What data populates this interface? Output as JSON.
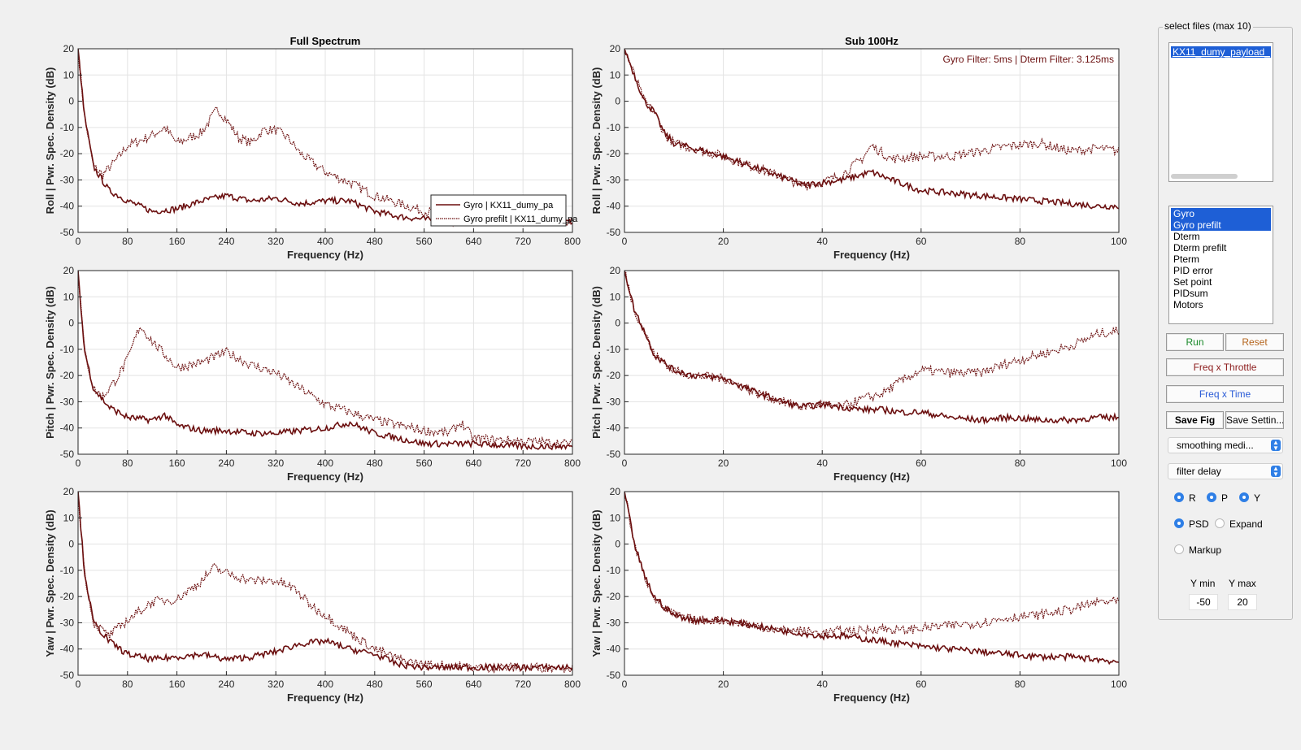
{
  "plots": [
    {
      "row": "Roll",
      "col": "full",
      "title": "Full Spectrum",
      "xlabel": "Frequency (Hz)",
      "ylabel": "Roll  |  Pwr. Spec. Density (dB)",
      "xlim": [
        0,
        800
      ],
      "xticks": [
        0,
        80,
        160,
        240,
        320,
        400,
        480,
        560,
        640,
        720,
        800
      ],
      "ylim": [
        -50,
        20
      ],
      "yticks": [
        20,
        10,
        0,
        -10,
        -20,
        -30,
        -40,
        -50
      ],
      "legend": [
        "Gyro | KX11_dumy_pa",
        "Gyro prefilt | KX11_dumy_pa"
      ]
    },
    {
      "row": "Roll",
      "col": "sub",
      "title": "Sub 100Hz",
      "xlabel": "Frequency (Hz)",
      "ylabel": "Roll  |  Pwr. Spec. Density (dB)",
      "xlim": [
        0,
        100
      ],
      "xticks": [
        0,
        20,
        40,
        60,
        80,
        100
      ],
      "ylim": [
        -50,
        20
      ],
      "yticks": [
        20,
        10,
        0,
        -10,
        -20,
        -30,
        -40,
        -50
      ],
      "annotation": "Gyro Filter: 5ms | Dterm Filter: 3.125ms"
    },
    {
      "row": "Pitch",
      "col": "full",
      "title": "",
      "xlabel": "Frequency (Hz)",
      "ylabel": "Pitch  |  Pwr. Spec. Density (dB)",
      "xlim": [
        0,
        800
      ],
      "xticks": [
        0,
        80,
        160,
        240,
        320,
        400,
        480,
        560,
        640,
        720,
        800
      ],
      "ylim": [
        -50,
        20
      ],
      "yticks": [
        20,
        10,
        0,
        -10,
        -20,
        -30,
        -40,
        -50
      ]
    },
    {
      "row": "Pitch",
      "col": "sub",
      "title": "",
      "xlabel": "Frequency (Hz)",
      "ylabel": "Pitch  |  Pwr. Spec. Density (dB)",
      "xlim": [
        0,
        100
      ],
      "xticks": [
        0,
        20,
        40,
        60,
        80,
        100
      ],
      "ylim": [
        -50,
        20
      ],
      "yticks": [
        20,
        10,
        0,
        -10,
        -20,
        -30,
        -40,
        -50
      ]
    },
    {
      "row": "Yaw",
      "col": "full",
      "title": "",
      "xlabel": "Frequency (Hz)",
      "ylabel": "Yaw  |  Pwr. Spec. Density (dB)",
      "xlim": [
        0,
        800
      ],
      "xticks": [
        0,
        80,
        160,
        240,
        320,
        400,
        480,
        560,
        640,
        720,
        800
      ],
      "ylim": [
        -50,
        20
      ],
      "yticks": [
        20,
        10,
        0,
        -10,
        -20,
        -30,
        -40,
        -50
      ]
    },
    {
      "row": "Yaw",
      "col": "sub",
      "title": "",
      "xlabel": "Frequency (Hz)",
      "ylabel": "Yaw  |  Pwr. Spec. Density (dB)",
      "xlim": [
        0,
        100
      ],
      "xticks": [
        0,
        20,
        40,
        60,
        80,
        100
      ],
      "ylim": [
        -50,
        20
      ],
      "yticks": [
        20,
        10,
        0,
        -10,
        -20,
        -30,
        -40,
        -50
      ]
    }
  ],
  "chart_data": [
    {
      "type": "line",
      "panel": "Roll Full Spectrum",
      "xlim": [
        0,
        800
      ],
      "ylim": [
        -50,
        20
      ],
      "grid": true,
      "series": [
        {
          "name": "Gyro | KX11_dumy_pa",
          "style": "solid",
          "x": [
            0,
            10,
            25,
            50,
            80,
            120,
            160,
            200,
            240,
            280,
            320,
            360,
            400,
            440,
            480,
            520,
            560,
            600,
            640,
            720,
            800
          ],
          "y": [
            20,
            -5,
            -25,
            -34,
            -38,
            -42,
            -41,
            -38,
            -36,
            -38,
            -37,
            -39,
            -38,
            -38,
            -42,
            -44,
            -45,
            -46,
            -46,
            -46,
            -46
          ]
        },
        {
          "name": "Gyro prefilt | KX11_dumy_pa",
          "style": "dotted",
          "x": [
            0,
            10,
            25,
            40,
            60,
            80,
            120,
            140,
            160,
            200,
            225,
            240,
            260,
            280,
            300,
            320,
            340,
            360,
            400,
            440,
            480,
            520,
            560,
            600,
            640,
            720,
            800
          ],
          "y": [
            20,
            -5,
            -25,
            -28,
            -23,
            -17,
            -13,
            -10,
            -16,
            -12,
            -3,
            -7,
            -14,
            -16,
            -11,
            -11,
            -14,
            -20,
            -27,
            -31,
            -36,
            -39,
            -42,
            -43,
            -45,
            -45,
            -46
          ]
        }
      ]
    },
    {
      "type": "line",
      "panel": "Roll Sub 100Hz",
      "xlim": [
        0,
        100
      ],
      "ylim": [
        -50,
        20
      ],
      "grid": true,
      "series": [
        {
          "name": "Gyro | KX11_dumy_pa",
          "style": "solid",
          "x": [
            0,
            2,
            4,
            6,
            8,
            10,
            14,
            20,
            26,
            32,
            36,
            40,
            44,
            48,
            50,
            54,
            60,
            66,
            72,
            78,
            84,
            90,
            96,
            100
          ],
          "y": [
            20,
            10,
            0,
            -4,
            -12,
            -16,
            -18,
            -21,
            -25,
            -29,
            -32,
            -31,
            -30,
            -28,
            -27,
            -30,
            -34,
            -35,
            -36,
            -37,
            -38,
            -39,
            -40,
            -40
          ]
        },
        {
          "name": "Gyro prefilt | KX11_dumy_pa",
          "style": "dotted",
          "x": [
            0,
            2,
            4,
            6,
            8,
            10,
            14,
            20,
            26,
            32,
            36,
            40,
            44,
            48,
            50,
            54,
            60,
            66,
            72,
            78,
            84,
            90,
            96,
            100
          ],
          "y": [
            20,
            10,
            0,
            -4,
            -12,
            -16,
            -18,
            -21,
            -25,
            -29,
            -32,
            -31,
            -28,
            -22,
            -17,
            -22,
            -21,
            -21,
            -19,
            -17,
            -16,
            -19,
            -18,
            -19
          ]
        }
      ]
    },
    {
      "type": "line",
      "panel": "Pitch Full Spectrum",
      "xlim": [
        0,
        800
      ],
      "ylim": [
        -50,
        20
      ],
      "grid": true,
      "series": [
        {
          "name": "Gyro | KX11_dumy_pa",
          "style": "solid",
          "x": [
            0,
            10,
            25,
            50,
            80,
            120,
            140,
            160,
            200,
            240,
            280,
            320,
            360,
            400,
            440,
            480,
            520,
            560,
            600,
            640,
            720,
            800
          ],
          "y": [
            20,
            -10,
            -25,
            -32,
            -36,
            -37,
            -35,
            -39,
            -41,
            -41,
            -42,
            -42,
            -41,
            -40,
            -38,
            -42,
            -44,
            -46,
            -46,
            -46,
            -47,
            -47
          ]
        },
        {
          "name": "Gyro prefilt | KX11_dumy_pa",
          "style": "dotted",
          "x": [
            0,
            10,
            25,
            40,
            60,
            80,
            100,
            120,
            140,
            160,
            200,
            240,
            280,
            320,
            360,
            400,
            440,
            480,
            520,
            560,
            600,
            620,
            640,
            720,
            800
          ],
          "y": [
            20,
            -10,
            -25,
            -28,
            -22,
            -14,
            -1,
            -7,
            -12,
            -17,
            -15,
            -11,
            -16,
            -19,
            -25,
            -31,
            -34,
            -37,
            -39,
            -41,
            -42,
            -38,
            -44,
            -45,
            -46
          ]
        }
      ]
    },
    {
      "type": "line",
      "panel": "Pitch Sub 100Hz",
      "xlim": [
        0,
        100
      ],
      "ylim": [
        -50,
        20
      ],
      "grid": true,
      "series": [
        {
          "name": "Gyro | KX11_dumy_pa",
          "style": "solid",
          "x": [
            0,
            2,
            4,
            6,
            8,
            10,
            14,
            20,
            26,
            32,
            36,
            40,
            44,
            48,
            52,
            56,
            60,
            66,
            72,
            78,
            84,
            90,
            96,
            100
          ],
          "y": [
            20,
            5,
            -3,
            -12,
            -15,
            -18,
            -20,
            -21,
            -26,
            -30,
            -32,
            -31,
            -32,
            -33,
            -33,
            -34,
            -34,
            -36,
            -37,
            -36,
            -37,
            -37,
            -36,
            -36
          ]
        },
        {
          "name": "Gyro prefilt | KX11_dumy_pa",
          "style": "dotted",
          "x": [
            0,
            2,
            4,
            6,
            8,
            10,
            14,
            20,
            26,
            32,
            36,
            40,
            44,
            48,
            52,
            56,
            60,
            66,
            72,
            78,
            84,
            90,
            96,
            100
          ],
          "y": [
            20,
            5,
            -3,
            -12,
            -15,
            -18,
            -20,
            -21,
            -26,
            -30,
            -32,
            -31,
            -32,
            -29,
            -27,
            -22,
            -18,
            -19,
            -19,
            -15,
            -12,
            -9,
            -4,
            -3
          ]
        }
      ]
    },
    {
      "type": "line",
      "panel": "Yaw Full Spectrum",
      "xlim": [
        0,
        800
      ],
      "ylim": [
        -50,
        20
      ],
      "grid": true,
      "series": [
        {
          "name": "Gyro | KX11_dumy_pa",
          "style": "solid",
          "x": [
            0,
            10,
            25,
            50,
            80,
            120,
            160,
            200,
            240,
            280,
            320,
            360,
            400,
            440,
            480,
            520,
            560,
            600,
            640,
            720,
            800
          ],
          "y": [
            20,
            -10,
            -30,
            -37,
            -42,
            -44,
            -43,
            -42,
            -44,
            -43,
            -41,
            -38,
            -37,
            -40,
            -42,
            -46,
            -47,
            -47,
            -47,
            -47,
            -47
          ]
        },
        {
          "name": "Gyro prefilt | KX11_dumy_pa",
          "style": "dotted",
          "x": [
            0,
            10,
            25,
            50,
            80,
            120,
            160,
            200,
            220,
            240,
            280,
            320,
            350,
            380,
            400,
            440,
            480,
            520,
            560,
            600,
            640,
            720,
            800
          ],
          "y": [
            20,
            -10,
            -30,
            -35,
            -29,
            -22,
            -21,
            -14,
            -9,
            -11,
            -14,
            -14,
            -17,
            -24,
            -27,
            -34,
            -40,
            -44,
            -46,
            -46,
            -47,
            -47,
            -47
          ]
        }
      ]
    },
    {
      "type": "line",
      "panel": "Yaw Sub 100Hz",
      "xlim": [
        0,
        100
      ],
      "ylim": [
        -50,
        20
      ],
      "grid": true,
      "series": [
        {
          "name": "Gyro | KX11_dumy_pa",
          "style": "solid",
          "x": [
            0,
            2,
            4,
            6,
            8,
            10,
            14,
            20,
            26,
            32,
            36,
            40,
            44,
            48,
            52,
            56,
            60,
            66,
            72,
            78,
            84,
            90,
            96,
            100
          ],
          "y": [
            20,
            0,
            -12,
            -20,
            -24,
            -27,
            -29,
            -29,
            -31,
            -33,
            -34,
            -35,
            -35,
            -36,
            -37,
            -38,
            -39,
            -40,
            -41,
            -42,
            -43,
            -43,
            -44,
            -45
          ]
        },
        {
          "name": "Gyro prefilt | KX11_dumy_pa",
          "style": "dotted",
          "x": [
            0,
            2,
            4,
            6,
            8,
            10,
            14,
            20,
            26,
            32,
            36,
            40,
            44,
            48,
            52,
            56,
            60,
            66,
            72,
            78,
            84,
            90,
            96,
            100
          ],
          "y": [
            20,
            0,
            -12,
            -20,
            -24,
            -27,
            -29,
            -29,
            -31,
            -33,
            -33,
            -34,
            -33,
            -33,
            -32,
            -33,
            -32,
            -31,
            -30,
            -28,
            -27,
            -25,
            -22,
            -22
          ]
        }
      ]
    }
  ],
  "panel": {
    "title": "select files (max 10)",
    "file_items": [
      "KX11_dumy_payload_"
    ],
    "signal_items": [
      {
        "label": "Gyro",
        "selected": true
      },
      {
        "label": "Gyro prefilt",
        "selected": true
      },
      {
        "label": "Dterm",
        "selected": false
      },
      {
        "label": "Dterm prefilt",
        "selected": false
      },
      {
        "label": "Pterm",
        "selected": false
      },
      {
        "label": "PID error",
        "selected": false
      },
      {
        "label": "Set point",
        "selected": false
      },
      {
        "label": "PIDsum",
        "selected": false
      },
      {
        "label": "Motors",
        "selected": false
      }
    ],
    "run": "Run",
    "reset": "Reset",
    "freq_throttle": "Freq x Throttle",
    "freq_time": "Freq x Time",
    "save_fig": "Save Fig",
    "save_settings": "Save Settin...",
    "smoothing": "smoothing medi...",
    "filter": "filter delay",
    "r": "R",
    "p": "P",
    "y": "Y",
    "psd": "PSD",
    "expand": "Expand",
    "markup": "Markup",
    "ymin_label": "Y min",
    "ymax_label": "Y max",
    "ymin": "-50",
    "ymax": "20",
    "colors": {
      "run": "#1a8a2a",
      "reset": "#b5651d",
      "freq_throttle": "#8b1a1a",
      "freq_time": "#2a5bd7",
      "series": "#6b0f0f",
      "selection": "#1e5fd6"
    }
  }
}
